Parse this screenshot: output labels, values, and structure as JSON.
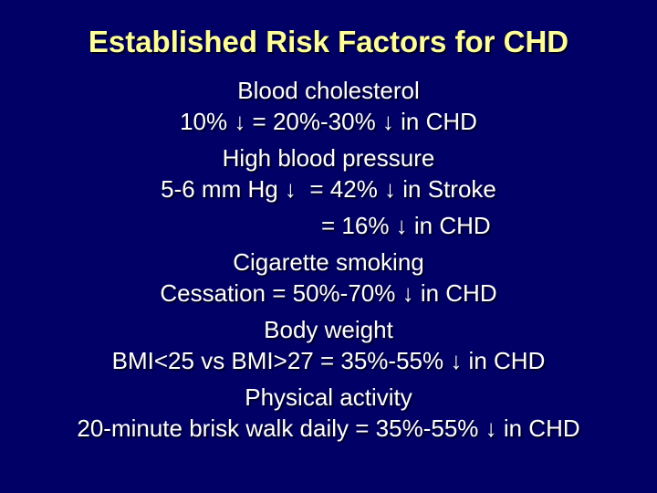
{
  "slide": {
    "background_color": "#000066",
    "title_color": "#FFFF99",
    "text_color": "#FFFFFF",
    "shadow_color": "#000014",
    "title": "Established Risk Factors for CHD",
    "sections": [
      {
        "heading": "Blood cholesterol",
        "lines": [
          "10% ↓ = 20%-30% ↓ in CHD"
        ]
      },
      {
        "heading": "High blood pressure",
        "lines": [
          "5-6 mm Hg ↓  = 42% ↓ in Stroke",
          "= 16% ↓ in CHD"
        ]
      },
      {
        "heading": "Cigarette smoking",
        "lines": [
          "Cessation = 50%-70% ↓ in CHD"
        ]
      },
      {
        "heading": "Body weight",
        "lines": [
          "BMI<25 vs BMI>27 = 35%-55% ↓ in CHD"
        ]
      },
      {
        "heading": "Physical activity",
        "lines": [
          "20-minute brisk walk daily = 35%-55% ↓ in CHD"
        ]
      }
    ]
  }
}
